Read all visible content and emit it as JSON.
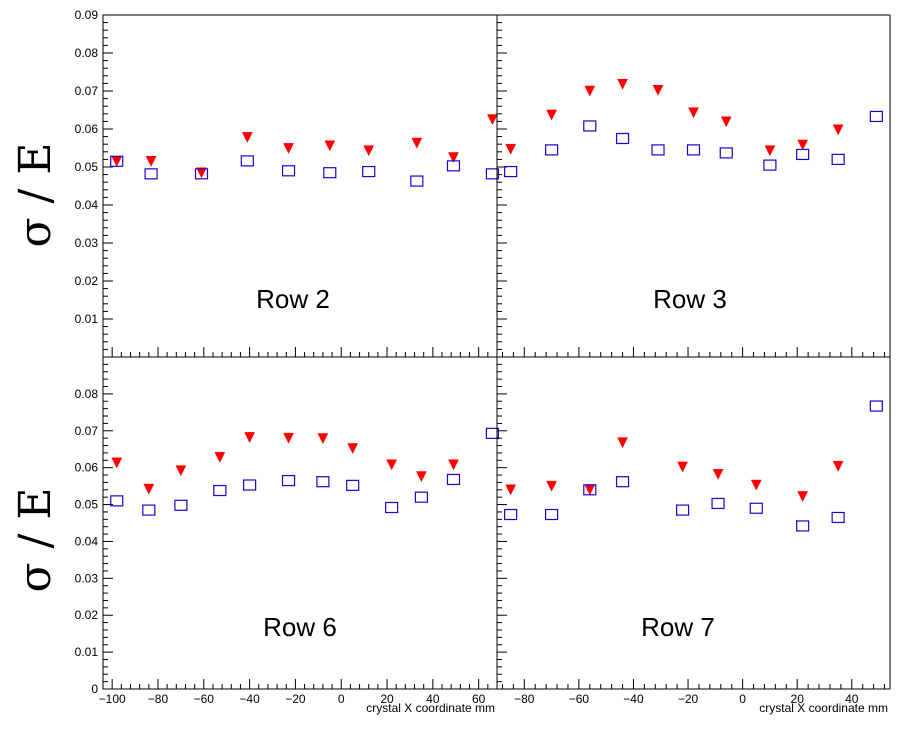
{
  "chart_data": {
    "type": "scatter",
    "series_style": {
      "triangles": {
        "marker": "triangle-down-filled",
        "color": "#ff0000"
      },
      "squares": {
        "marker": "square-open",
        "color": "#2200cc"
      }
    },
    "panels": [
      {
        "label": "Row 2",
        "ylabel": "σ / E",
        "xlabel": "",
        "xlim": [
          -104,
          68
        ],
        "ylim": [
          0,
          0.09
        ],
        "xticks": [],
        "yticks": [
          "0.01",
          "0.02",
          "0.03",
          "0.04",
          "0.05",
          "0.06",
          "0.07",
          "0.08",
          "0.09"
        ],
        "series": [
          {
            "key": "triangles",
            "x": [
              -98,
              -83,
              -61,
              -41,
              -23,
              -5,
              12,
              33,
              49,
              66
            ],
            "y": [
              0.0515,
              0.0515,
              0.0485,
              0.0578,
              0.0549,
              0.0556,
              0.0543,
              0.0563,
              0.0525,
              0.0625
            ]
          },
          {
            "key": "squares",
            "x": [
              -98,
              -83,
              -61,
              -41,
              -23,
              -5,
              12,
              33,
              49,
              66
            ],
            "y": [
              0.0515,
              0.0482,
              0.0482,
              0.0516,
              0.049,
              0.0485,
              0.0488,
              0.0463,
              0.0503,
              0.0482
            ]
          }
        ]
      },
      {
        "label": "Row 3",
        "ylabel": "",
        "xlabel": "",
        "xlim": [
          -90,
          54
        ],
        "ylim": [
          0,
          0.09
        ],
        "xticks": [],
        "yticks": [],
        "series": [
          {
            "key": "triangles",
            "x": [
              -85,
              -70,
              -56,
              -44,
              -31,
              -18,
              -6,
              10,
              22,
              35
            ],
            "y": [
              0.0547,
              0.0637,
              0.07,
              0.0718,
              0.0702,
              0.0643,
              0.0619,
              0.0543,
              0.0558,
              0.0598
            ]
          },
          {
            "key": "squares",
            "x": [
              -85,
              -70,
              -56,
              -44,
              -31,
              -18,
              -6,
              10,
              22,
              35,
              49
            ],
            "y": [
              0.0488,
              0.0545,
              0.0608,
              0.0575,
              0.0545,
              0.0545,
              0.0537,
              0.0505,
              0.0533,
              0.052,
              0.0633
            ]
          }
        ]
      },
      {
        "label": "Row 6",
        "ylabel": "σ / E",
        "xlabel": "crystal X coordinate mm",
        "xlim": [
          -104,
          68
        ],
        "ylim": [
          0,
          0.09
        ],
        "xticks": [
          "−100",
          "−80",
          "−60",
          "−40",
          "−20",
          "0",
          "20",
          "40",
          "60"
        ],
        "yticks": [
          "0",
          "0.01",
          "0.02",
          "0.03",
          "0.04",
          "0.05",
          "0.06",
          "0.07",
          "0.08"
        ],
        "series": [
          {
            "key": "triangles",
            "x": [
              -98,
              -84,
              -70,
              -53,
              -40,
              -23,
              -8,
              5,
              22,
              35,
              49
            ],
            "y": [
              0.0613,
              0.0542,
              0.0592,
              0.0628,
              0.0682,
              0.068,
              0.0679,
              0.0652,
              0.0608,
              0.0576,
              0.0608
            ]
          },
          {
            "key": "squares",
            "x": [
              -98,
              -84,
              -70,
              -53,
              -40,
              -23,
              -8,
              5,
              22,
              35,
              49,
              66
            ],
            "y": [
              0.051,
              0.0485,
              0.0498,
              0.0538,
              0.0553,
              0.0565,
              0.0562,
              0.0552,
              0.0492,
              0.052,
              0.0568,
              0.0693
            ]
          }
        ]
      },
      {
        "label": "Row 7",
        "ylabel": "",
        "xlabel": "crystal X coordinate mm",
        "xlim": [
          -90,
          54
        ],
        "ylim": [
          0,
          0.09
        ],
        "xticks": [
          "−80",
          "−60",
          "−40",
          "−20",
          "0",
          "20",
          "40"
        ],
        "yticks": [],
        "series": [
          {
            "key": "triangles",
            "x": [
              -85,
              -70,
              -56,
              -44,
              -22,
              -9,
              5,
              22,
              35
            ],
            "y": [
              0.054,
              0.055,
              0.054,
              0.0668,
              0.0602,
              0.0582,
              0.0553,
              0.0522,
              0.0604
            ]
          },
          {
            "key": "squares",
            "x": [
              -85,
              -70,
              -56,
              -44,
              -22,
              -9,
              5,
              22,
              35,
              49
            ],
            "y": [
              0.0473,
              0.0473,
              0.054,
              0.0562,
              0.0485,
              0.0503,
              0.049,
              0.0442,
              0.0465,
              0.0767
            ]
          }
        ]
      }
    ]
  }
}
